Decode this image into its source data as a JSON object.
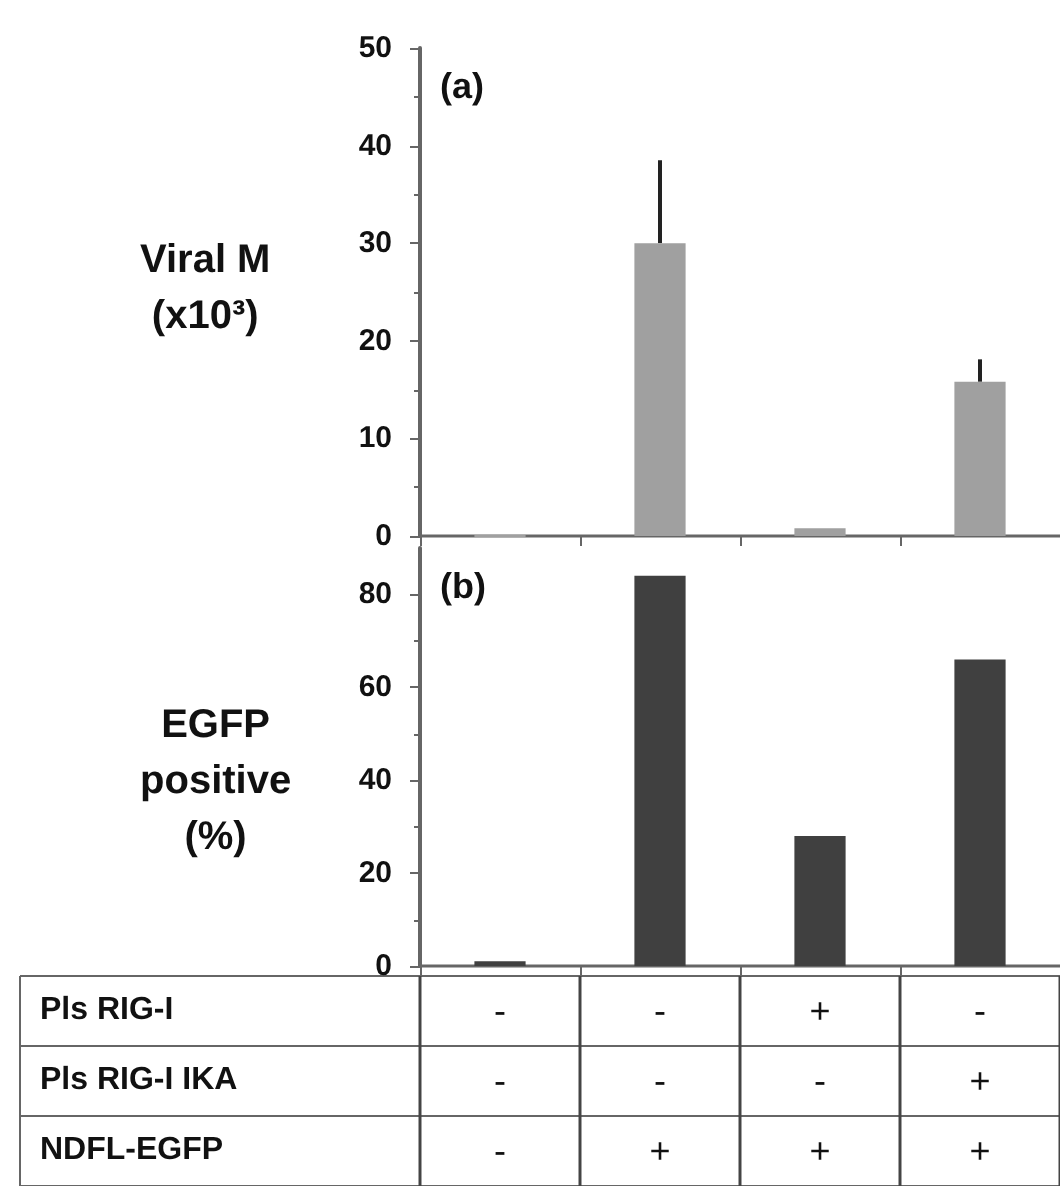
{
  "chart_data": [
    {
      "type": "bar",
      "title": "(a)",
      "ylabel": "Viral M\n(x10³)",
      "categories": [
        null,
        null,
        null,
        null
      ],
      "series": [
        {
          "color": "#a0a0a0",
          "values": [
            0,
            30,
            0.8,
            15.8
          ],
          "errors": [
            null,
            [
              30,
              38.5
            ],
            null,
            [
              15.8,
              18.1
            ]
          ]
        }
      ],
      "ylim": [
        0,
        50
      ],
      "yticks": [
        0,
        10,
        20,
        30,
        40,
        50
      ],
      "tick_labels": "y"
    },
    {
      "type": "bar",
      "title": "(b)",
      "ylabel": "EGFP\npositive\n(%)",
      "categories": [
        "-\n-\n-",
        "-\n-\n+",
        "+\n-\n+",
        "-\n+\n+"
      ],
      "series": [
        {
          "color": "#404040",
          "values": [
            1,
            84,
            28,
            66
          ]
        }
      ],
      "ylim": [
        0,
        90
      ],
      "yticks": [
        0,
        20,
        40,
        60,
        80
      ],
      "annotations": [
        "Pls RIG-I",
        "Pls RIG-I IKA",
        "NDFL-EGFP"
      ]
    }
  ]
}
